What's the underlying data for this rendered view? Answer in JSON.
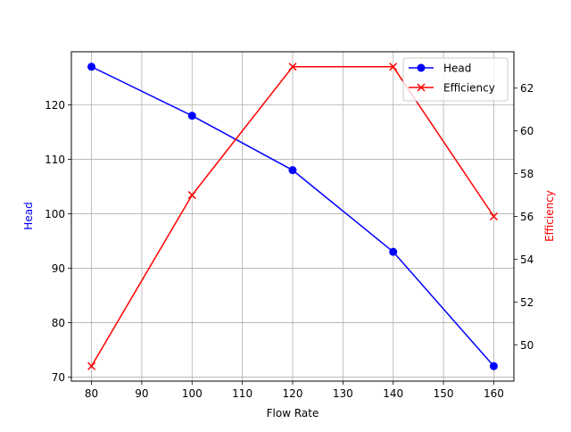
{
  "chart_data": {
    "type": "line",
    "title": "",
    "xlabel": "Flow Rate",
    "ylabel": "Head",
    "ylabel_right": "Efficiency",
    "x": [
      80,
      100,
      120,
      140,
      160
    ],
    "series": [
      {
        "name": "Head",
        "axis": "left",
        "color": "#0000ff",
        "marker": "circle",
        "values": [
          127,
          118,
          108,
          93,
          72
        ]
      },
      {
        "name": "Efficiency",
        "axis": "right",
        "color": "#ff0000",
        "marker": "x",
        "values": [
          49,
          57,
          63,
          63,
          56
        ]
      }
    ],
    "xlim": [
      76,
      164
    ],
    "ylim": [
      69.25,
      129.75
    ],
    "ylim_right": [
      48.3,
      63.7
    ],
    "xticks": [
      80,
      90,
      100,
      110,
      120,
      130,
      140,
      150,
      160
    ],
    "yticks": [
      70,
      80,
      90,
      100,
      110,
      120
    ],
    "yticks_right": [
      50,
      52,
      54,
      56,
      58,
      60,
      62
    ],
    "grid": true,
    "legend_position": "upper right"
  },
  "labels": {
    "xlabel": "Flow Rate",
    "ylabel_left": "Head",
    "ylabel_right": "Efficiency",
    "legend_head": "Head",
    "legend_efficiency": "Efficiency"
  }
}
